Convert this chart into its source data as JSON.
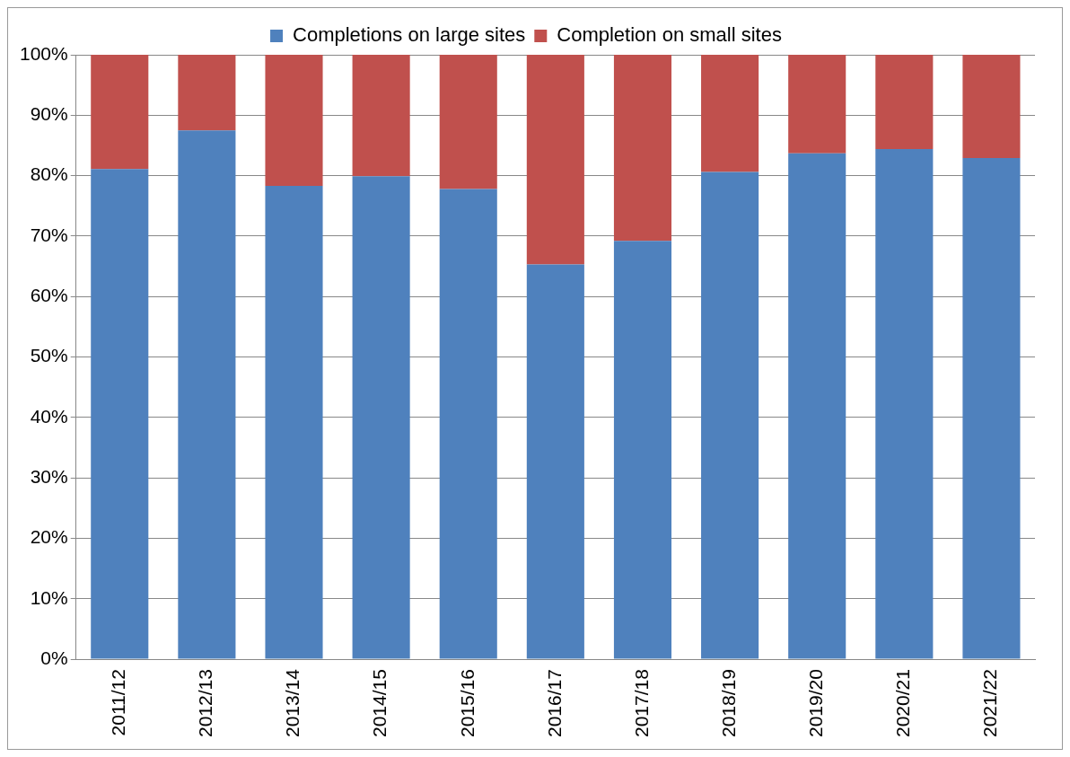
{
  "chart_data": {
    "type": "bar",
    "stacked": true,
    "categories": [
      "2011/12",
      "2012/13",
      "2013/14",
      "2014/15",
      "2015/16",
      "2016/17",
      "2017/18",
      "2018/19",
      "2019/20",
      "2020/21",
      "2021/22"
    ],
    "series": [
      {
        "name": "Completions on large sites",
        "color": "#4f81bd",
        "values": [
          81.1,
          87.5,
          78.3,
          79.9,
          77.8,
          65.3,
          69.2,
          80.6,
          83.7,
          84.4,
          82.9
        ]
      },
      {
        "name": "Completion on small sites",
        "color": "#c0504d",
        "values": [
          18.9,
          12.5,
          21.7,
          20.1,
          22.2,
          34.7,
          30.8,
          19.4,
          16.3,
          15.6,
          17.1
        ]
      }
    ],
    "ylim": [
      0,
      100
    ],
    "yticks": [
      {
        "value": 0,
        "label": "0%"
      },
      {
        "value": 10,
        "label": "10%"
      },
      {
        "value": 20,
        "label": "20%"
      },
      {
        "value": 30,
        "label": "30%"
      },
      {
        "value": 40,
        "label": "40%"
      },
      {
        "value": 50,
        "label": "50%"
      },
      {
        "value": 60,
        "label": "60%"
      },
      {
        "value": 70,
        "label": "70%"
      },
      {
        "value": 80,
        "label": "80%"
      },
      {
        "value": 90,
        "label": "90%"
      },
      {
        "value": 100,
        "label": "100%"
      }
    ],
    "grid": "y",
    "legend": "top"
  }
}
